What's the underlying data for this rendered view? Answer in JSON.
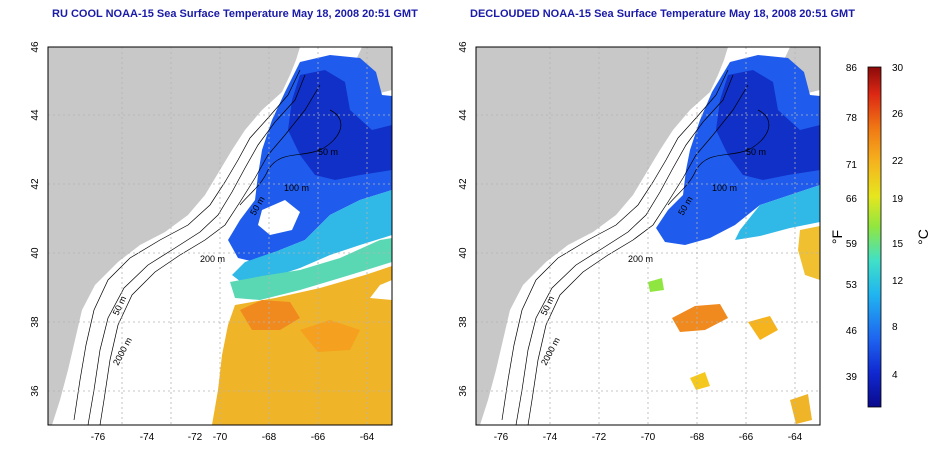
{
  "panels": [
    {
      "title": "RU COOL NOAA-15 Sea Surface Temperature May 18, 2008 20:51 GMT",
      "product": "raw"
    },
    {
      "title": "DECLOUDED NOAA-15 Sea Surface Temperature May 18, 2008 20:51 GMT",
      "product": "declouded"
    }
  ],
  "axes": {
    "lon_range": [
      -77,
      -63
    ],
    "lat_range": [
      35,
      46
    ],
    "lon_ticks": [
      -76,
      -74,
      -72,
      -70,
      -68,
      -66,
      -64
    ],
    "lat_ticks": [
      36,
      38,
      40,
      42,
      44,
      46
    ]
  },
  "contours": {
    "labels": [
      "50 m",
      "100 m",
      "200 m",
      "2000 m"
    ]
  },
  "colorbar": {
    "fahrenheit_ticks": [
      "86",
      "78",
      "71",
      "66",
      "59",
      "53",
      "46",
      "39"
    ],
    "celsius_ticks": [
      "30",
      "26",
      "22",
      "19",
      "15",
      "12",
      "8",
      "4"
    ],
    "fahrenheit_label": "°F",
    "celsius_label": "°C",
    "range_c": [
      0,
      30
    ],
    "colors": [
      "#0a0a8c",
      "#1028d0",
      "#1e64f0",
      "#20b4f0",
      "#40e0c8",
      "#90e640",
      "#e6e61e",
      "#f5b41e",
      "#f07814",
      "#dc2814",
      "#8c0a0a"
    ]
  },
  "colors": {
    "land": "#c8c8c8",
    "ocean_no_data": "#ffffff",
    "grid": "#b4b4b4",
    "title": "#1a1aa8"
  }
}
